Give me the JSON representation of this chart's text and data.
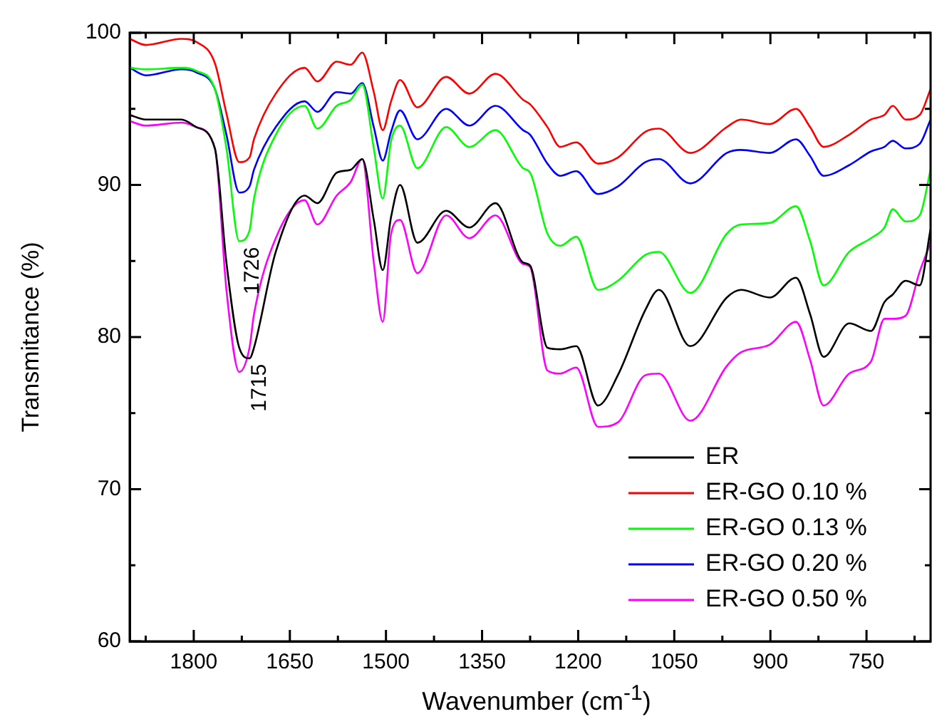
{
  "chart_data": {
    "type": "line",
    "xlabel": "Wavenumber (cm$^{-1}$)",
    "ylabel": "Transmitance (%)",
    "x": [
      1900,
      1875,
      1819,
      1796,
      1767,
      1749,
      1729,
      1713,
      1706,
      1672,
      1627,
      1607,
      1577,
      1555,
      1537,
      1519,
      1505,
      1492,
      1478,
      1451,
      1406,
      1370,
      1329,
      1286,
      1275,
      1248,
      1228,
      1203,
      1169,
      1138,
      1095,
      1074,
      1025,
      968,
      946,
      901,
      860,
      838,
      817,
      777,
      743,
      722,
      709,
      689,
      667,
      650
    ],
    "series": [
      {
        "name": "ER",
        "color": "#000000",
        "values": [
          94.6,
          94.3,
          94.3,
          93.8,
          92.4,
          84.9,
          79.3,
          78.6,
          79.3,
          85.6,
          89.3,
          88.8,
          90.8,
          91.0,
          91.7,
          87.7,
          84.4,
          87.9,
          90.0,
          86.2,
          88.3,
          87.2,
          88.8,
          84.9,
          84.7,
          79.3,
          79.2,
          79.4,
          75.5,
          77.5,
          81.8,
          83.1,
          79.4,
          82.6,
          83.1,
          82.6,
          83.9,
          81.5,
          78.7,
          80.9,
          80.4,
          82.3,
          82.8,
          83.7,
          83.4,
          87.1
        ]
      },
      {
        "name": "ER-GO 0.10 %",
        "color": "#ff0000",
        "values": [
          99.6,
          99.2,
          99.6,
          99.4,
          98.0,
          94.7,
          91.5,
          91.8,
          93.0,
          96.0,
          97.7,
          96.8,
          98.1,
          97.9,
          98.7,
          96.1,
          93.6,
          95.5,
          96.9,
          95.1,
          97.1,
          96.0,
          97.3,
          95.6,
          95.3,
          93.8,
          92.5,
          92.8,
          91.4,
          91.8,
          93.5,
          93.7,
          92.1,
          93.8,
          94.3,
          94.0,
          95.0,
          93.8,
          92.5,
          93.3,
          94.3,
          94.6,
          95.2,
          94.3,
          94.6,
          96.3
        ]
      },
      {
        "name": "ER-GO 0.13 %",
        "color": "#00ff00",
        "values": [
          97.7,
          97.6,
          97.7,
          97.5,
          96.3,
          92.4,
          86.3,
          87.0,
          89.1,
          93.3,
          95.2,
          93.7,
          95.2,
          95.6,
          96.6,
          92.4,
          89.1,
          92.9,
          93.9,
          91.1,
          93.8,
          92.5,
          93.6,
          91.1,
          90.8,
          86.8,
          86.0,
          86.6,
          83.1,
          83.7,
          85.4,
          85.6,
          82.9,
          86.8,
          87.4,
          87.5,
          88.6,
          86.3,
          83.4,
          85.6,
          86.5,
          87.2,
          88.4,
          87.6,
          88.0,
          91.0
        ]
      },
      {
        "name": "ER-GO 0.20 %",
        "color": "#0000ff",
        "values": [
          97.7,
          97.2,
          97.6,
          97.4,
          96.3,
          93.3,
          89.5,
          89.9,
          91.0,
          93.8,
          95.5,
          94.8,
          96.1,
          96.0,
          96.7,
          93.8,
          91.6,
          93.5,
          94.9,
          93.0,
          95.0,
          93.9,
          95.2,
          93.6,
          93.3,
          91.4,
          90.6,
          90.9,
          89.4,
          89.9,
          91.5,
          91.7,
          90.1,
          92.1,
          92.3,
          92.1,
          93.0,
          91.9,
          90.6,
          91.3,
          92.2,
          92.5,
          92.9,
          92.4,
          92.7,
          94.3
        ]
      },
      {
        "name": "ER-GO 0.50 %",
        "color": "#ff00ff",
        "values": [
          94.2,
          93.9,
          94.1,
          93.8,
          92.4,
          83.1,
          77.7,
          79.3,
          81.5,
          86.5,
          89.0,
          87.4,
          89.3,
          90.2,
          91.7,
          84.9,
          81.0,
          86.8,
          87.7,
          84.2,
          88.0,
          86.5,
          88.0,
          84.8,
          84.6,
          77.8,
          77.6,
          78.0,
          74.1,
          74.4,
          77.5,
          77.6,
          74.5,
          78.1,
          79.0,
          79.5,
          81.0,
          78.5,
          75.5,
          77.6,
          78.4,
          81.2,
          81.2,
          81.4,
          84.3,
          86.2
        ]
      }
    ],
    "annotations": [
      {
        "text": "1726",
        "x": 1726,
        "y": 86.3
      },
      {
        "text": "1715",
        "x": 1715,
        "y": 78.6
      }
    ],
    "xlim": [
      1900,
      650
    ],
    "xticks": [
      {
        "value": 1875,
        "label": null
      },
      1800,
      {
        "value": 1725,
        "label": null
      },
      1650,
      {
        "value": 1575,
        "label": null
      },
      1500,
      {
        "value": 1425,
        "label": null
      },
      1350,
      {
        "value": 1275,
        "label": null
      },
      1200,
      {
        "value": 1125,
        "label": null
      },
      1050,
      {
        "value": 975,
        "label": null
      },
      900,
      {
        "value": 825,
        "label": null
      },
      750,
      {
        "value": 675,
        "label": null
      }
    ],
    "ylim": [
      60,
      100
    ],
    "yticks": [
      60,
      {
        "value": 65,
        "label": null
      },
      70,
      {
        "value": 75,
        "label": null
      },
      80,
      {
        "value": 85,
        "label": null
      },
      90,
      {
        "value": 95,
        "label": null
      },
      100
    ],
    "grid": false,
    "legend": "bottom right",
    "marker": "none",
    "line_style": "solid"
  }
}
